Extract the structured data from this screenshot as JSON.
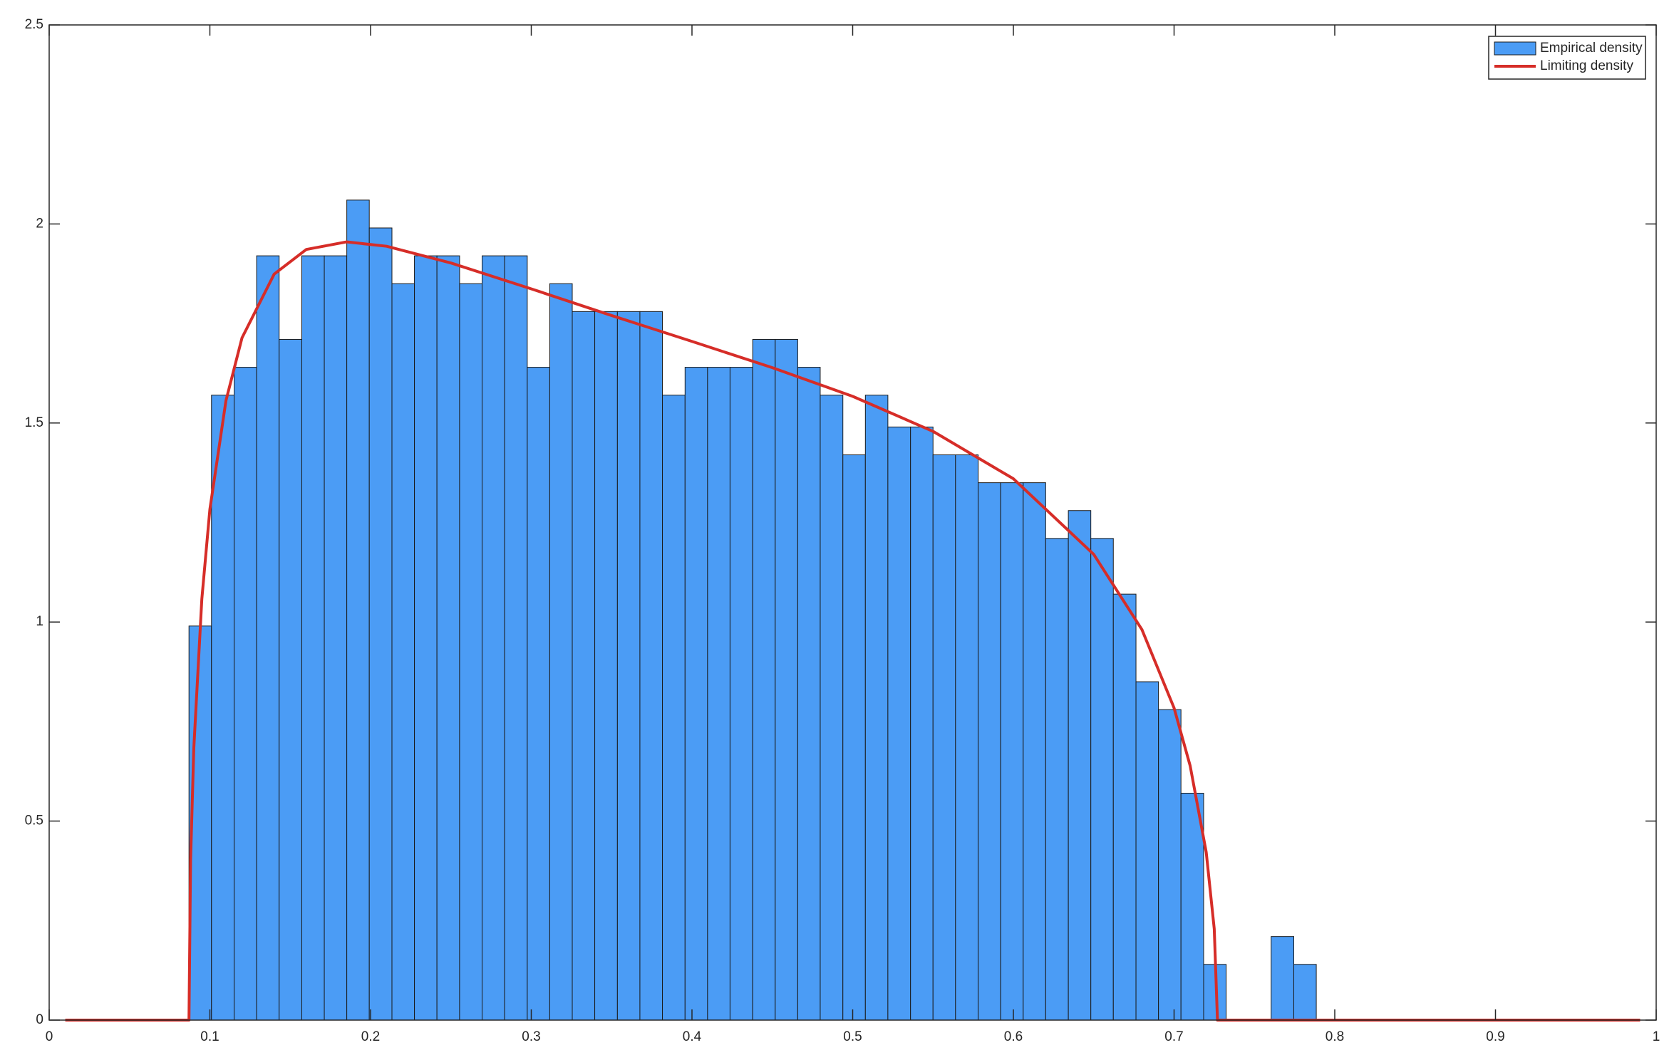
{
  "chart_data": {
    "type": "histogram",
    "xlim": [
      0,
      1
    ],
    "ylim": [
      0,
      2.5
    ],
    "xticks": [
      0,
      0.1,
      0.2,
      0.3,
      0.4,
      0.5,
      0.6,
      0.7,
      0.8,
      0.9,
      1
    ],
    "yticks": [
      0,
      0.5,
      1,
      1.5,
      2,
      2.5
    ],
    "legend": "top-right",
    "bins": [
      0.087,
      0.101,
      0.1151,
      0.1291,
      0.1431,
      0.1572,
      0.1712,
      0.1852,
      0.1992,
      0.2133,
      0.2273,
      0.2413,
      0.2554,
      0.2694,
      0.2834,
      0.2975,
      0.3115,
      0.3255,
      0.3395,
      0.3536,
      0.3676,
      0.3816,
      0.3957,
      0.4097,
      0.4237,
      0.4378,
      0.4518,
      0.4658,
      0.4798,
      0.4939,
      0.5079,
      0.5219,
      0.536,
      0.55,
      0.564,
      0.5781,
      0.5921,
      0.6061,
      0.6201,
      0.6342,
      0.6482,
      0.6622,
      0.6763,
      0.6903,
      0.7043,
      0.7184,
      0.7324,
      0.7464,
      0.7604,
      0.7745,
      0.7885
    ],
    "series": [
      {
        "name": "Empirical density",
        "color": "#4b9cf5",
        "values": [
          0.99,
          1.57,
          1.64,
          1.92,
          1.71,
          1.92,
          1.92,
          2.06,
          1.99,
          1.85,
          1.92,
          1.92,
          1.85,
          1.92,
          1.92,
          1.64,
          1.85,
          1.78,
          1.78,
          1.78,
          1.78,
          1.57,
          1.64,
          1.64,
          1.64,
          1.71,
          1.71,
          1.64,
          1.57,
          1.42,
          1.57,
          1.49,
          1.49,
          1.42,
          1.42,
          1.35,
          1.35,
          1.35,
          1.21,
          1.28,
          1.21,
          1.07,
          0.85,
          0.78,
          0.57,
          0.14,
          0,
          0,
          0.21,
          0.14
        ]
      },
      {
        "name": "Limiting density",
        "type": "line",
        "color": "#d62d28",
        "x": [
          0.01,
          0.087,
          0.088,
          0.09,
          0.095,
          0.1,
          0.11,
          0.12,
          0.14,
          0.16,
          0.185,
          0.21,
          0.25,
          0.3,
          0.35,
          0.4,
          0.45,
          0.5,
          0.55,
          0.6,
          0.65,
          0.68,
          0.7,
          0.71,
          0.72,
          0.725,
          0.727,
          0.99
        ],
        "values": [
          0,
          0,
          0.403,
          0.683,
          1.058,
          1.283,
          1.556,
          1.714,
          1.874,
          1.936,
          1.955,
          1.944,
          1.902,
          1.837,
          1.77,
          1.705,
          1.639,
          1.567,
          1.479,
          1.36,
          1.17,
          0.981,
          0.784,
          0.639,
          0.422,
          0.229,
          0,
          0
        ]
      }
    ]
  }
}
